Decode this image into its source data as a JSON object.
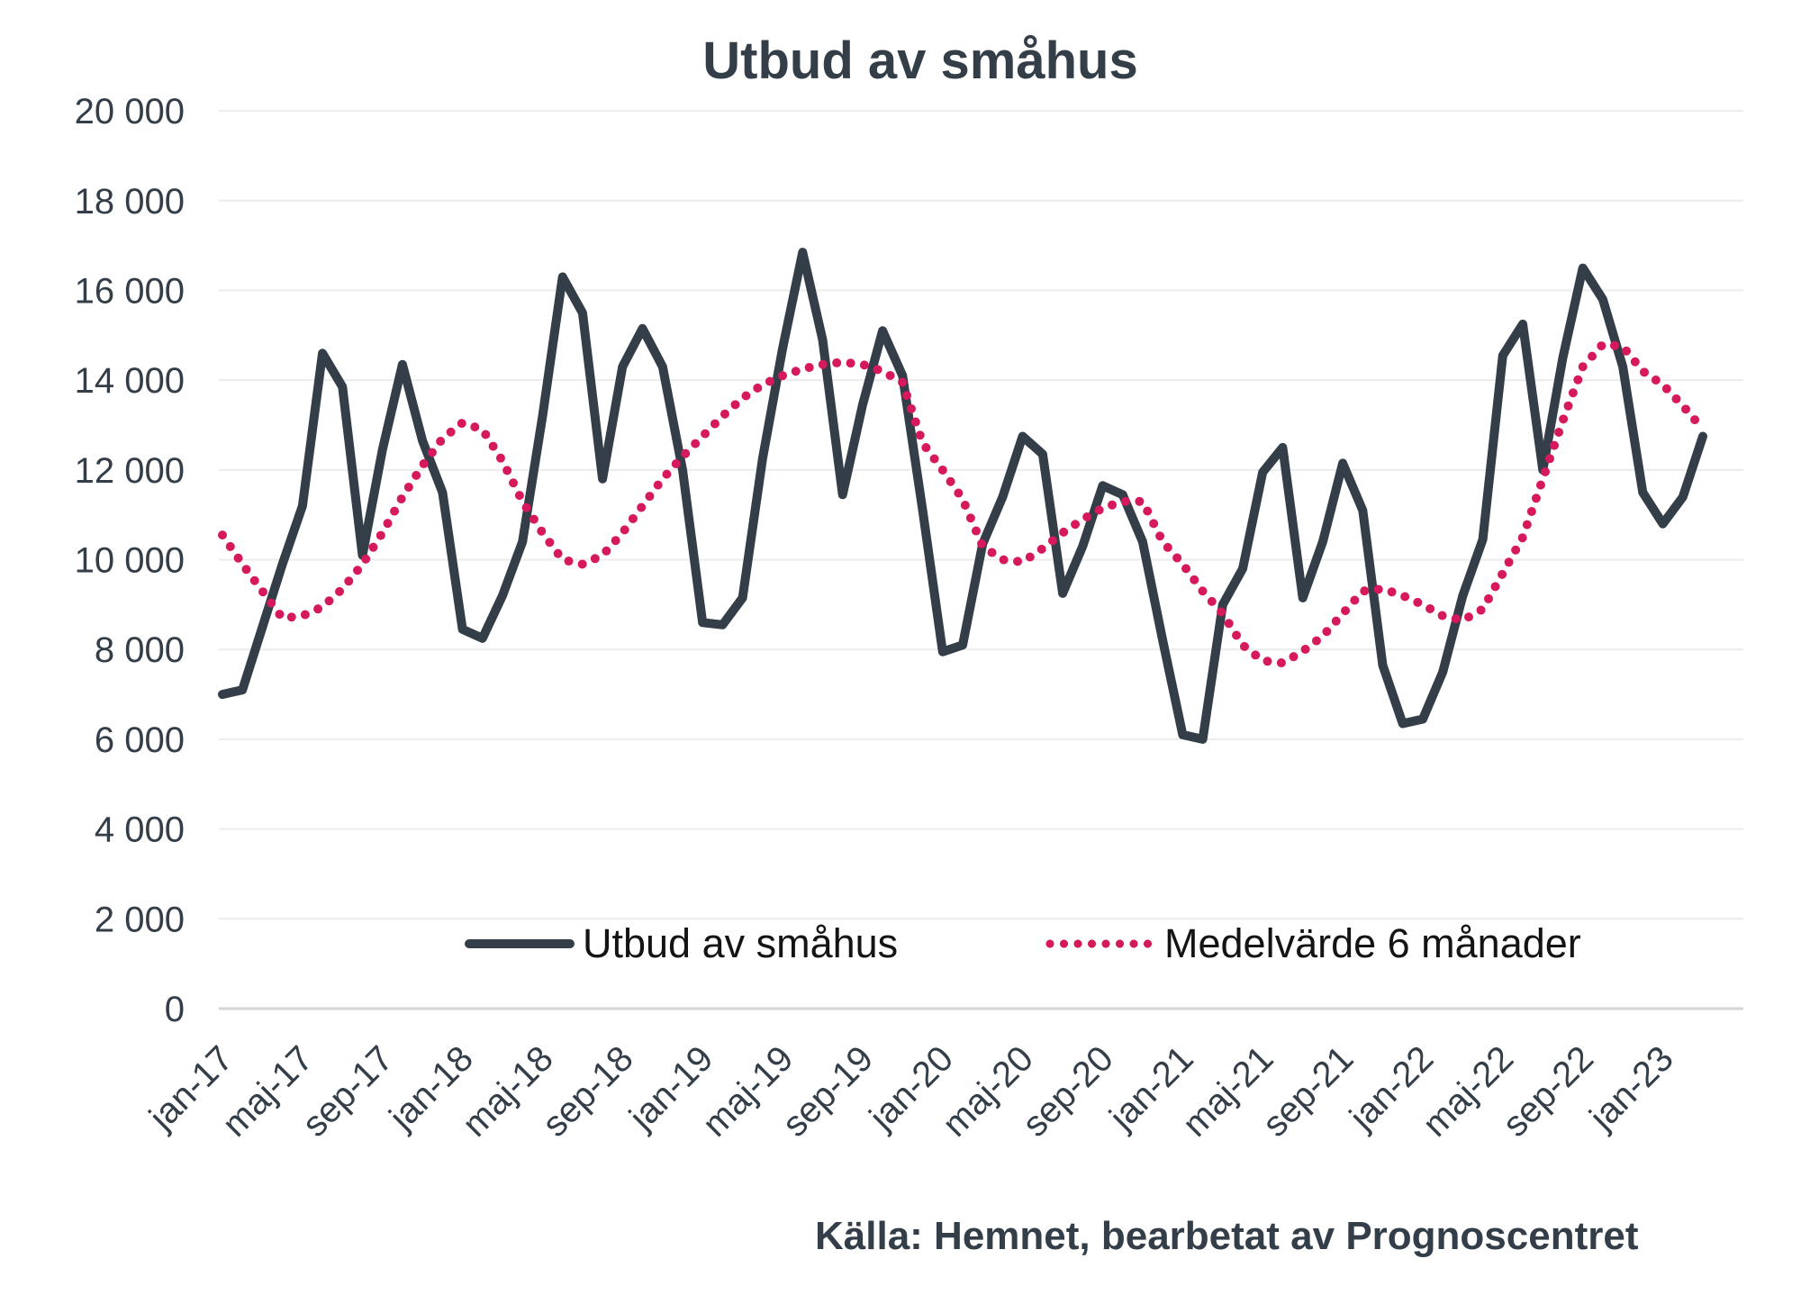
{
  "chart_data": {
    "type": "line",
    "title": "Utbud av småhus",
    "xlabel": "",
    "ylabel": "",
    "ylim": [
      0,
      20000
    ],
    "y_tick_step": 2000,
    "y_tick_labels": [
      "0",
      "2 000",
      "4 000",
      "6 000",
      "8 000",
      "10 000",
      "12 000",
      "14 000",
      "16 000",
      "18 000",
      "20 000"
    ],
    "x_tick_every": 4,
    "x_tick_labels": [
      "jan-17",
      "maj-17",
      "sep-17",
      "jan-18",
      "maj-18",
      "sep-18",
      "jan-19",
      "maj-19",
      "sep-19",
      "jan-20",
      "maj-20",
      "sep-20",
      "jan-21",
      "maj-21",
      "sep-21",
      "jan-22",
      "maj-22",
      "sep-22",
      "jan-23"
    ],
    "grid": "horizontal",
    "legend_position": "bottom-inside",
    "months": [
      "jan-17",
      "feb-17",
      "mar-17",
      "apr-17",
      "maj-17",
      "jun-17",
      "jul-17",
      "aug-17",
      "sep-17",
      "okt-17",
      "nov-17",
      "dec-17",
      "jan-18",
      "feb-18",
      "mar-18",
      "apr-18",
      "maj-18",
      "jun-18",
      "jul-18",
      "aug-18",
      "sep-18",
      "okt-18",
      "nov-18",
      "dec-18",
      "jan-19",
      "feb-19",
      "mar-19",
      "apr-19",
      "maj-19",
      "jun-19",
      "jul-19",
      "aug-19",
      "sep-19",
      "okt-19",
      "nov-19",
      "dec-19",
      "jan-20",
      "feb-20",
      "mar-20",
      "apr-20",
      "maj-20",
      "jun-20",
      "jul-20",
      "aug-20",
      "sep-20",
      "okt-20",
      "nov-20",
      "dec-20",
      "jan-21",
      "feb-21",
      "mar-21",
      "apr-21",
      "maj-21",
      "jun-21",
      "jul-21",
      "aug-21",
      "sep-21",
      "okt-21",
      "nov-21",
      "dec-21",
      "jan-22",
      "feb-22",
      "mar-22",
      "apr-22",
      "maj-22",
      "jun-22",
      "jul-22",
      "aug-22",
      "sep-22",
      "okt-22",
      "nov-22",
      "dec-22",
      "jan-23",
      "feb-23",
      "mar-23"
    ],
    "series": [
      {
        "name": "Utbud av småhus",
        "style": "solid",
        "color": "#333e48",
        "values": [
          7000,
          7100,
          8500,
          9900,
          11200,
          14600,
          13850,
          10100,
          12450,
          14350,
          12650,
          11500,
          8450,
          8250,
          9200,
          10400,
          13200,
          16300,
          15500,
          11800,
          14300,
          15150,
          14300,
          12000,
          8600,
          8550,
          9150,
          12250,
          14700,
          16850,
          14900,
          11450,
          13450,
          15100,
          14100,
          11100,
          7950,
          8100,
          10350,
          11400,
          12750,
          12350,
          9250,
          10300,
          11650,
          11450,
          10400,
          8200,
          6100,
          6000,
          9000,
          9800,
          11950,
          12500,
          9150,
          10400,
          12150,
          11100,
          7650,
          6350,
          6450,
          7500,
          9200,
          10450,
          14550,
          15250,
          12000,
          14500,
          16500,
          15800,
          14300,
          11500,
          10800,
          11400,
          12750
        ]
      },
      {
        "name": "Medelvärde 6 månader",
        "style": "dotted",
        "color": "#d6195c",
        "values": [
          10550,
          9900,
          9300,
          8700,
          8750,
          8950,
          9350,
          9900,
          10600,
          11400,
          12100,
          12700,
          13050,
          12900,
          12200,
          11300,
          10600,
          10000,
          9900,
          10100,
          10600,
          11200,
          11800,
          12300,
          12750,
          13200,
          13600,
          13900,
          14100,
          14250,
          14350,
          14400,
          14350,
          14200,
          13950,
          12600,
          12000,
          11350,
          10300,
          10000,
          9950,
          10250,
          10600,
          10900,
          11150,
          11300,
          11300,
          10400,
          9900,
          9300,
          8800,
          8100,
          7750,
          7700,
          7960,
          8300,
          8800,
          9300,
          9350,
          9200,
          9000,
          8750,
          8650,
          8900,
          9700,
          10500,
          11800,
          13100,
          14300,
          14800,
          14750,
          14200,
          13900,
          13430,
          12910
        ]
      }
    ]
  },
  "legend": {
    "items": [
      {
        "label": "Utbud av småhus"
      },
      {
        "label": "Medelvärde 6 månader"
      }
    ]
  },
  "source": {
    "text": "Källa: Hemnet, bearbetat av Prognoscentret"
  },
  "colors": {
    "line_solid": "#333e48",
    "line_dotted": "#d6195c",
    "text": "#333e48",
    "legend_text": "#141414",
    "gridline": "#ececec",
    "axis_line": "#d6d6d6",
    "background": "#ffffff"
  }
}
